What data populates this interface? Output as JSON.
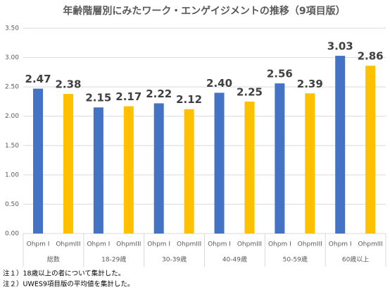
{
  "chart_data": {
    "type": "bar",
    "title": "年齢階層別にみたワーク・エンゲイジメントの推移（9項目版）",
    "categories": [
      "総数",
      "18-29歳",
      "30-39歳",
      "40-49歳",
      "50-59歳",
      "60歳以上"
    ],
    "series": [
      {
        "name": "Ohpm I",
        "color": "#4472c4",
        "values": [
          2.47,
          2.15,
          2.22,
          2.4,
          2.56,
          3.03
        ],
        "value_labels": [
          "2.47",
          "2.15",
          "2.22",
          "2.40",
          "2.56",
          "3.03"
        ]
      },
      {
        "name": "OhpmIII",
        "color": "#ffc000",
        "values": [
          2.38,
          2.17,
          2.12,
          2.25,
          2.39,
          2.86
        ],
        "value_labels": [
          "2.38",
          "2.17",
          "2.12",
          "2.25",
          "2.39",
          "2.86"
        ]
      }
    ],
    "ylim": [
      0,
      3.5
    ],
    "yticks": [
      {
        "value": 0,
        "label": "0.00"
      },
      {
        "value": 0.5,
        "label": "0.50"
      },
      {
        "value": 1,
        "label": "1.00"
      },
      {
        "value": 1.5,
        "label": "1.50"
      },
      {
        "value": 2,
        "label": "2.00"
      },
      {
        "value": 2.5,
        "label": "2.50"
      },
      {
        "value": 3,
        "label": "3.00"
      },
      {
        "value": 3.5,
        "label": "3.50"
      }
    ],
    "grid": true,
    "notes": [
      "注１）18歳以上の者について集計した。",
      "注２）UWES9項目版の平均値を集計した。"
    ]
  }
}
